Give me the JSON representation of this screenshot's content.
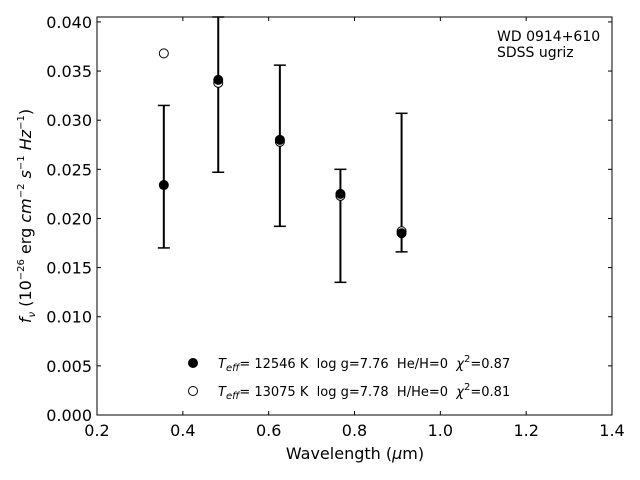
{
  "chart_data": {
    "type": "scatter",
    "annotation_lines": [
      "WD 0914+610",
      "SDSS ugriz"
    ],
    "xlabel": "Wavelength (μm)",
    "ylabel": "f_ν (10^-26 erg cm^-2 s^-1 Hz^-1)",
    "xlim": [
      0.2,
      1.4
    ],
    "ylim": [
      0.0,
      0.0405
    ],
    "x_ticks": [
      0.2,
      0.4,
      0.6,
      0.8,
      1.0,
      1.2,
      1.4
    ],
    "x_tick_labels": [
      "0.2",
      "0.4",
      "0.6",
      "0.8",
      "1.0",
      "1.2",
      "1.4"
    ],
    "y_ticks": [
      0.0,
      0.005,
      0.01,
      0.015,
      0.02,
      0.025,
      0.03,
      0.035,
      0.04
    ],
    "y_tick_labels": [
      "0.000",
      "0.005",
      "0.010",
      "0.015",
      "0.020",
      "0.025",
      "0.030",
      "0.035",
      "0.040"
    ],
    "grid": false,
    "legend_position": "bottom-center",
    "observed": {
      "x": [
        0.3557,
        0.4825,
        0.6261,
        0.7672,
        0.9097
      ],
      "y_low": [
        0.017,
        0.0247,
        0.0192,
        0.0135,
        0.0166
      ],
      "y_high": [
        0.0315,
        0.0405,
        0.0356,
        0.025,
        0.0307
      ]
    },
    "series": [
      {
        "name": "T_eff= 12546 K  log g=7.76  He/H=0  χ²=0.87",
        "legend": {
          "sym": "T",
          "sub": "eff",
          "text": "= 12546 K  log g=7.76  He/H=0  ",
          "chi": "χ",
          "sup": "2",
          "tail": "=0.87"
        },
        "marker": "filled",
        "x": [
          0.3557,
          0.4825,
          0.6261,
          0.7672,
          0.9097
        ],
        "y": [
          0.0234,
          0.0341,
          0.028,
          0.0225,
          0.0185
        ]
      },
      {
        "name": "T_eff= 13075 K  log g=7.78  H/He=0  χ²=0.81",
        "legend": {
          "sym": "T",
          "sub": "eff",
          "text": "= 13075 K  log g=7.78  H/He=0  ",
          "chi": "χ",
          "sup": "2",
          "tail": "=0.81"
        },
        "marker": "open",
        "x": [
          0.3557,
          0.4825,
          0.6261,
          0.7672,
          0.9097
        ],
        "y": [
          0.0368,
          0.0338,
          0.0278,
          0.0223,
          0.0187
        ]
      }
    ]
  }
}
